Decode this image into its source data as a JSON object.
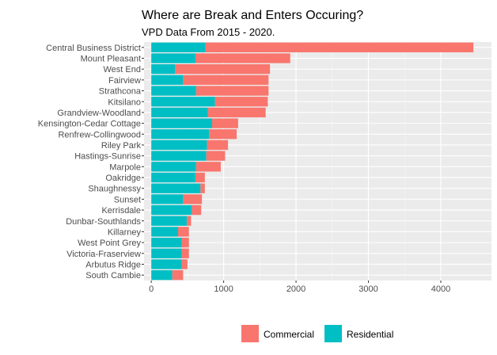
{
  "chart_data": {
    "type": "bar",
    "orientation": "horizontal",
    "stacked": true,
    "title": "Where are Break and Enters Occuring?",
    "subtitle": "VPD Data From 2015 - 2020.",
    "xlabel": "",
    "ylabel": "",
    "xlim": [
      -100,
      4700
    ],
    "x_ticks": [
      0,
      1000,
      2000,
      3000,
      4000
    ],
    "grid": true,
    "legend_position": "bottom",
    "categories": [
      "Central Business District",
      "Mount Pleasant",
      "West End",
      "Fairview",
      "Strathcona",
      "Kitsilano",
      "Grandview-Woodland",
      "Kensington-Cedar Cottage",
      "Renfrew-Collingwood",
      "Riley Park",
      "Hastings-Sunrise",
      "Marpole",
      "Oakridge",
      "Shaughnessy",
      "Sunset",
      "Kerrisdale",
      "Dunbar-Southlands",
      "Killarney",
      "West Point Grey",
      "Victoria-Fraserview",
      "Arbutus Ridge",
      "South Cambie"
    ],
    "series": [
      {
        "name": "Residential",
        "color": "#00BFC4",
        "values": [
          750,
          610,
          330,
          440,
          620,
          880,
          780,
          840,
          800,
          770,
          760,
          620,
          610,
          680,
          440,
          560,
          490,
          370,
          420,
          420,
          420,
          290
        ]
      },
      {
        "name": "Commercial",
        "color": "#F8766D",
        "values": [
          3700,
          1310,
          1310,
          1180,
          1000,
          730,
          800,
          360,
          380,
          290,
          260,
          340,
          130,
          60,
          260,
          130,
          60,
          150,
          100,
          100,
          80,
          150
        ]
      }
    ],
    "legend": [
      {
        "name": "Commercial",
        "color": "#F8766D"
      },
      {
        "name": "Residential",
        "color": "#00BFC4"
      }
    ]
  }
}
